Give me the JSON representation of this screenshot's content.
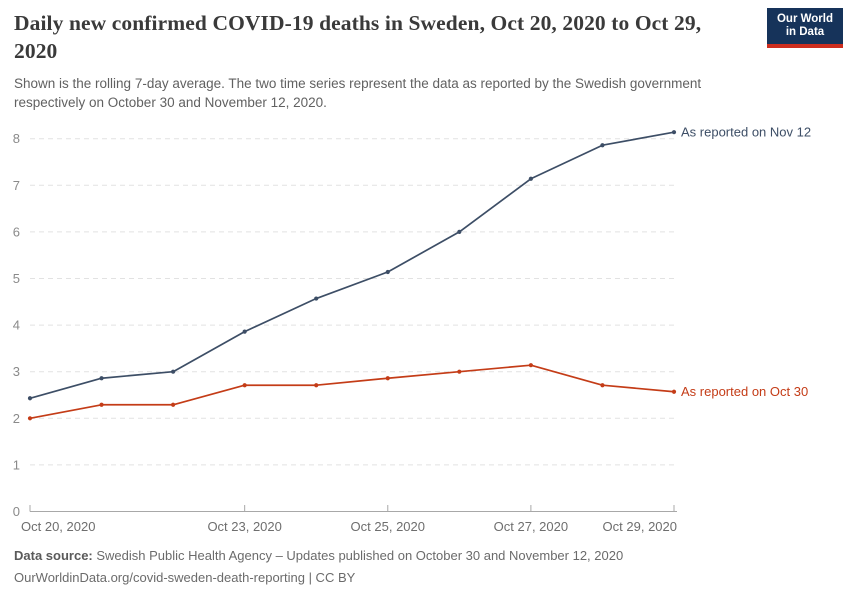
{
  "chart_data": {
    "type": "line",
    "title": "Daily new confirmed COVID-19 deaths in Sweden, Oct 20, 2020 to Oct 29, 2020",
    "subtitle": "Shown is the rolling 7-day average. The two time series represent the data as reported by the Swedish government respectively on October 30 and November 12, 2020.",
    "x": [
      "Oct 20, 2020",
      "Oct 21, 2020",
      "Oct 22, 2020",
      "Oct 23, 2020",
      "Oct 24, 2020",
      "Oct 25, 2020",
      "Oct 26, 2020",
      "Oct 27, 2020",
      "Oct 28, 2020",
      "Oct 29, 2020"
    ],
    "series": [
      {
        "name": "As reported on Nov 12",
        "color": "#3d4e66",
        "values": [
          2.43,
          2.86,
          3.0,
          3.86,
          4.57,
          5.14,
          6.0,
          7.14,
          7.86,
          8.14
        ]
      },
      {
        "name": "As reported on Oct 30",
        "color": "#c43c17",
        "values": [
          2.0,
          2.29,
          2.29,
          2.71,
          2.71,
          2.86,
          3.0,
          3.14,
          2.71,
          2.57
        ]
      }
    ],
    "xlabel": "",
    "ylabel": "",
    "ylim": [
      0,
      8.5
    ],
    "yticks": [
      0,
      1,
      2,
      3,
      4,
      5,
      6,
      7,
      8
    ],
    "xtick_indices": [
      0,
      3,
      5,
      7,
      9
    ],
    "grid": "horizontal-dashed",
    "legend_position": "line-end-labels"
  },
  "logo": {
    "line1": "Our World",
    "line2": "in Data",
    "bg_color": "#16335a",
    "bar_color": "#cd2d1e"
  },
  "footer": {
    "source_label": "Data source:",
    "source_text": " Swedish Public Health Agency – Updates published on October 30 and November 12, 2020",
    "attribution": "OurWorldinData.org/covid-sweden-death-reporting | CC BY"
  },
  "colors": {
    "grid": "#e2e2e2",
    "axis": "#a8a8a8",
    "title_text": "#3a3a3a",
    "subtitle_text": "#616161",
    "footer_text": "#6b6b6b"
  }
}
